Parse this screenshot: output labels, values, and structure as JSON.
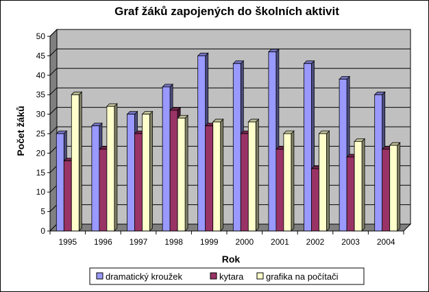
{
  "chart_data": {
    "type": "bar",
    "title": "Graf žáků zapojených do školních aktivit",
    "xlabel": "Rok",
    "ylabel": "Počet žáků",
    "categories": [
      "1995",
      "1996",
      "1997",
      "1998",
      "1999",
      "2000",
      "2001",
      "2002",
      "2003",
      "2004"
    ],
    "ylim": [
      0,
      50
    ],
    "ytick_step": 5,
    "grid": true,
    "legend_position": "bottom",
    "series": [
      {
        "name": "dramatický kroužek",
        "color": "#9999ff",
        "values": [
          25,
          27,
          30,
          37,
          45,
          43,
          46,
          43,
          39,
          35
        ]
      },
      {
        "name": "kytara",
        "color": "#993366",
        "values": [
          18,
          21,
          25,
          31,
          27,
          25,
          21,
          16,
          19,
          21
        ]
      },
      {
        "name": "grafika na počítači",
        "color": "#ffffcc",
        "values": [
          35,
          32,
          30,
          29,
          28,
          28,
          25,
          25,
          23,
          22
        ]
      }
    ],
    "wall_color": "#c0c0c0",
    "floor_color": "#808080"
  }
}
